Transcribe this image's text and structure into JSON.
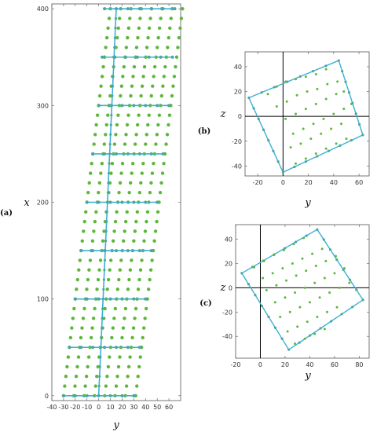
{
  "colors": {
    "grid_point": "#5cb83a",
    "line": "#3bb0d6",
    "line_point": "#4aa6a0"
  },
  "chart_data": [
    {
      "panel": "(a)",
      "type": "scatter",
      "xlabel": "y",
      "ylabel": "x",
      "xlim": [
        -40,
        70
      ],
      "ylim": [
        -5,
        405
      ],
      "xticks": [
        -40,
        -30,
        -20,
        -10,
        0,
        10,
        20,
        30,
        40,
        50,
        60
      ],
      "yticks": [
        0,
        100,
        200,
        300,
        400
      ],
      "grid_points": {
        "row_x": [
          0,
          400
        ],
        "rows": 41,
        "y_start_at_x0": -30,
        "y_start_at_x400": 10,
        "spacing_y": 8.8,
        "cols": 8
      },
      "spine": [
        [
          0,
          0
        ],
        [
          15,
          400
        ]
      ],
      "ribs": [
        {
          "x": 0,
          "y_from": -30,
          "y_to": 30
        },
        {
          "x": 50,
          "y_from": -25,
          "y_to": 35
        },
        {
          "x": 100,
          "y_from": -20,
          "y_to": 40
        },
        {
          "x": 150,
          "y_from": -15,
          "y_to": 45
        },
        {
          "x": 200,
          "y_from": -10,
          "y_to": 50
        },
        {
          "x": 250,
          "y_from": -5,
          "y_to": 55
        },
        {
          "x": 300,
          "y_from": 0,
          "y_to": 60
        },
        {
          "x": 350,
          "y_from": 3,
          "y_to": 63
        },
        {
          "x": 400,
          "y_from": 5,
          "y_to": 65
        }
      ]
    },
    {
      "panel": "(b)",
      "type": "scatter",
      "xlabel": "y",
      "ylabel": "z",
      "xlim": [
        -30,
        68
      ],
      "ylim": [
        -48,
        52
      ],
      "xticks": [
        -20,
        0,
        20,
        40,
        60
      ],
      "yticks": [
        -40,
        -20,
        0,
        20,
        40
      ],
      "square": [
        [
          -27,
          15
        ],
        [
          44,
          45
        ],
        [
          63,
          -15
        ],
        [
          0,
          -45
        ]
      ],
      "interior_points": [
        [
          -12,
          18
        ],
        [
          -5,
          24
        ],
        [
          2,
          28
        ],
        [
          10,
          30
        ],
        [
          18,
          32
        ],
        [
          26,
          34
        ],
        [
          34,
          38
        ],
        [
          -5,
          8
        ],
        [
          3,
          12
        ],
        [
          11,
          17
        ],
        [
          19,
          20
        ],
        [
          27,
          22
        ],
        [
          35,
          26
        ],
        [
          43,
          28
        ],
        [
          2,
          -2
        ],
        [
          10,
          2
        ],
        [
          18,
          6
        ],
        [
          26,
          10
        ],
        [
          34,
          14
        ],
        [
          42,
          18
        ],
        [
          48,
          20
        ],
        [
          8,
          -14
        ],
        [
          16,
          -10
        ],
        [
          24,
          -6
        ],
        [
          32,
          -2
        ],
        [
          40,
          2
        ],
        [
          48,
          6
        ],
        [
          54,
          10
        ],
        [
          6,
          -25
        ],
        [
          14,
          -22
        ],
        [
          22,
          -18
        ],
        [
          30,
          -14
        ],
        [
          38,
          -10
        ],
        [
          46,
          -6
        ],
        [
          10,
          -38
        ],
        [
          18,
          -34
        ],
        [
          26,
          -30
        ],
        [
          34,
          -26
        ],
        [
          42,
          -22
        ],
        [
          50,
          -18
        ]
      ]
    },
    {
      "panel": "(c)",
      "type": "scatter",
      "xlabel": "y",
      "ylabel": "z",
      "xlim": [
        -20,
        88
      ],
      "ylim": [
        -58,
        52
      ],
      "xticks": [
        -20,
        0,
        20,
        40,
        60,
        80
      ],
      "yticks": [
        -40,
        -20,
        0,
        20,
        40
      ],
      "square": [
        [
          -15,
          12
        ],
        [
          46,
          48
        ],
        [
          83,
          -10
        ],
        [
          23,
          -51
        ]
      ],
      "interior_points": [
        [
          -5,
          17
        ],
        [
          3,
          22
        ],
        [
          11,
          27
        ],
        [
          19,
          31
        ],
        [
          27,
          36
        ],
        [
          35,
          41
        ],
        [
          2,
          8
        ],
        [
          10,
          12
        ],
        [
          18,
          16
        ],
        [
          26,
          20
        ],
        [
          34,
          24
        ],
        [
          42,
          28
        ],
        [
          50,
          32
        ],
        [
          5,
          -2
        ],
        [
          13,
          2
        ],
        [
          21,
          6
        ],
        [
          29,
          10
        ],
        [
          37,
          14
        ],
        [
          45,
          18
        ],
        [
          53,
          22
        ],
        [
          61,
          26
        ],
        [
          12,
          -12
        ],
        [
          20,
          -8
        ],
        [
          28,
          -4
        ],
        [
          36,
          0
        ],
        [
          44,
          4
        ],
        [
          52,
          8
        ],
        [
          60,
          12
        ],
        [
          68,
          16
        ],
        [
          16,
          -24
        ],
        [
          24,
          -20
        ],
        [
          32,
          -16
        ],
        [
          40,
          -12
        ],
        [
          48,
          -8
        ],
        [
          56,
          -4
        ],
        [
          64,
          0
        ],
        [
          72,
          4
        ],
        [
          22,
          -36
        ],
        [
          30,
          -32
        ],
        [
          38,
          -28
        ],
        [
          46,
          -24
        ],
        [
          54,
          -20
        ],
        [
          62,
          -16
        ],
        [
          28,
          -46
        ],
        [
          36,
          -42
        ],
        [
          44,
          -38
        ],
        [
          52,
          -34
        ]
      ]
    }
  ]
}
